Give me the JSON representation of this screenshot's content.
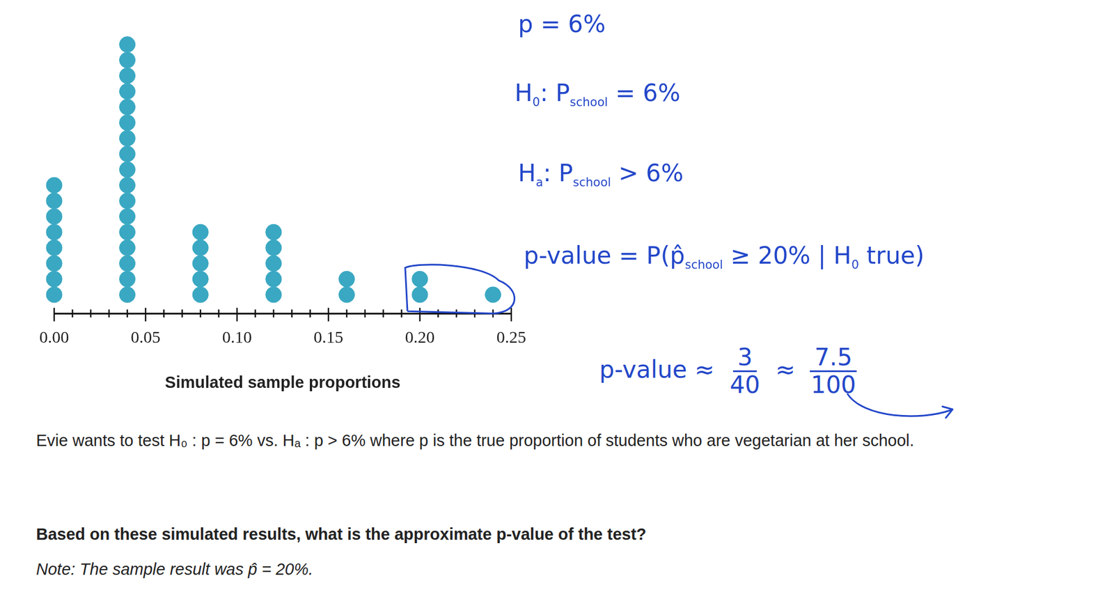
{
  "chart_data": {
    "type": "dot",
    "x": [
      0,
      0.04,
      0.08,
      0.12,
      0.16,
      0.2,
      0.24
    ],
    "values": [
      8,
      17,
      5,
      5,
      2,
      2,
      1
    ],
    "color": "#3aa8c2",
    "xlim": [
      0,
      0.25
    ],
    "xticks": [
      {
        "value": 0,
        "label": "0.00"
      },
      0.05,
      {
        "value": 0.1,
        "label": "0.10"
      },
      0.15,
      {
        "value": 0.2,
        "label": "0.20"
      },
      0.25
    ],
    "xlabel": "Simulated sample proportions",
    "tick_labels": "x",
    "grid": false,
    "circled": [
      0.2,
      0.24
    ]
  },
  "notes": [
    {
      "parts": [
        "p = 6%"
      ]
    },
    {
      "parts": [
        "H",
        {
          "sub": "0"
        },
        ": P",
        {
          "sub": "school"
        },
        " = 6%"
      ]
    },
    {
      "parts": [
        "H",
        {
          "sub": "a"
        },
        ": P",
        {
          "sub": "school"
        },
        " > 6%"
      ]
    },
    {
      "parts": [
        "p-value = P(p̂",
        {
          "sub": "school"
        },
        " ≥ 20% | H",
        {
          "sub": "0"
        },
        " true)"
      ]
    },
    {
      "parts": [
        "p-value ≈ ",
        {
          "num": "3",
          "den": "40"
        },
        " ≈ ",
        {
          "num": "7.5",
          "den": "100"
        }
      ]
    }
  ],
  "prompt": "Evie wants to test H₀ : p = 6% vs. Hₐ : p > 6% where p is the true proportion of students who are vegetarian at her school.",
  "question": "Based on these simulated results, what is the approximate p-value of the test?",
  "note": "Note: The sample result was p̂ = 20%."
}
